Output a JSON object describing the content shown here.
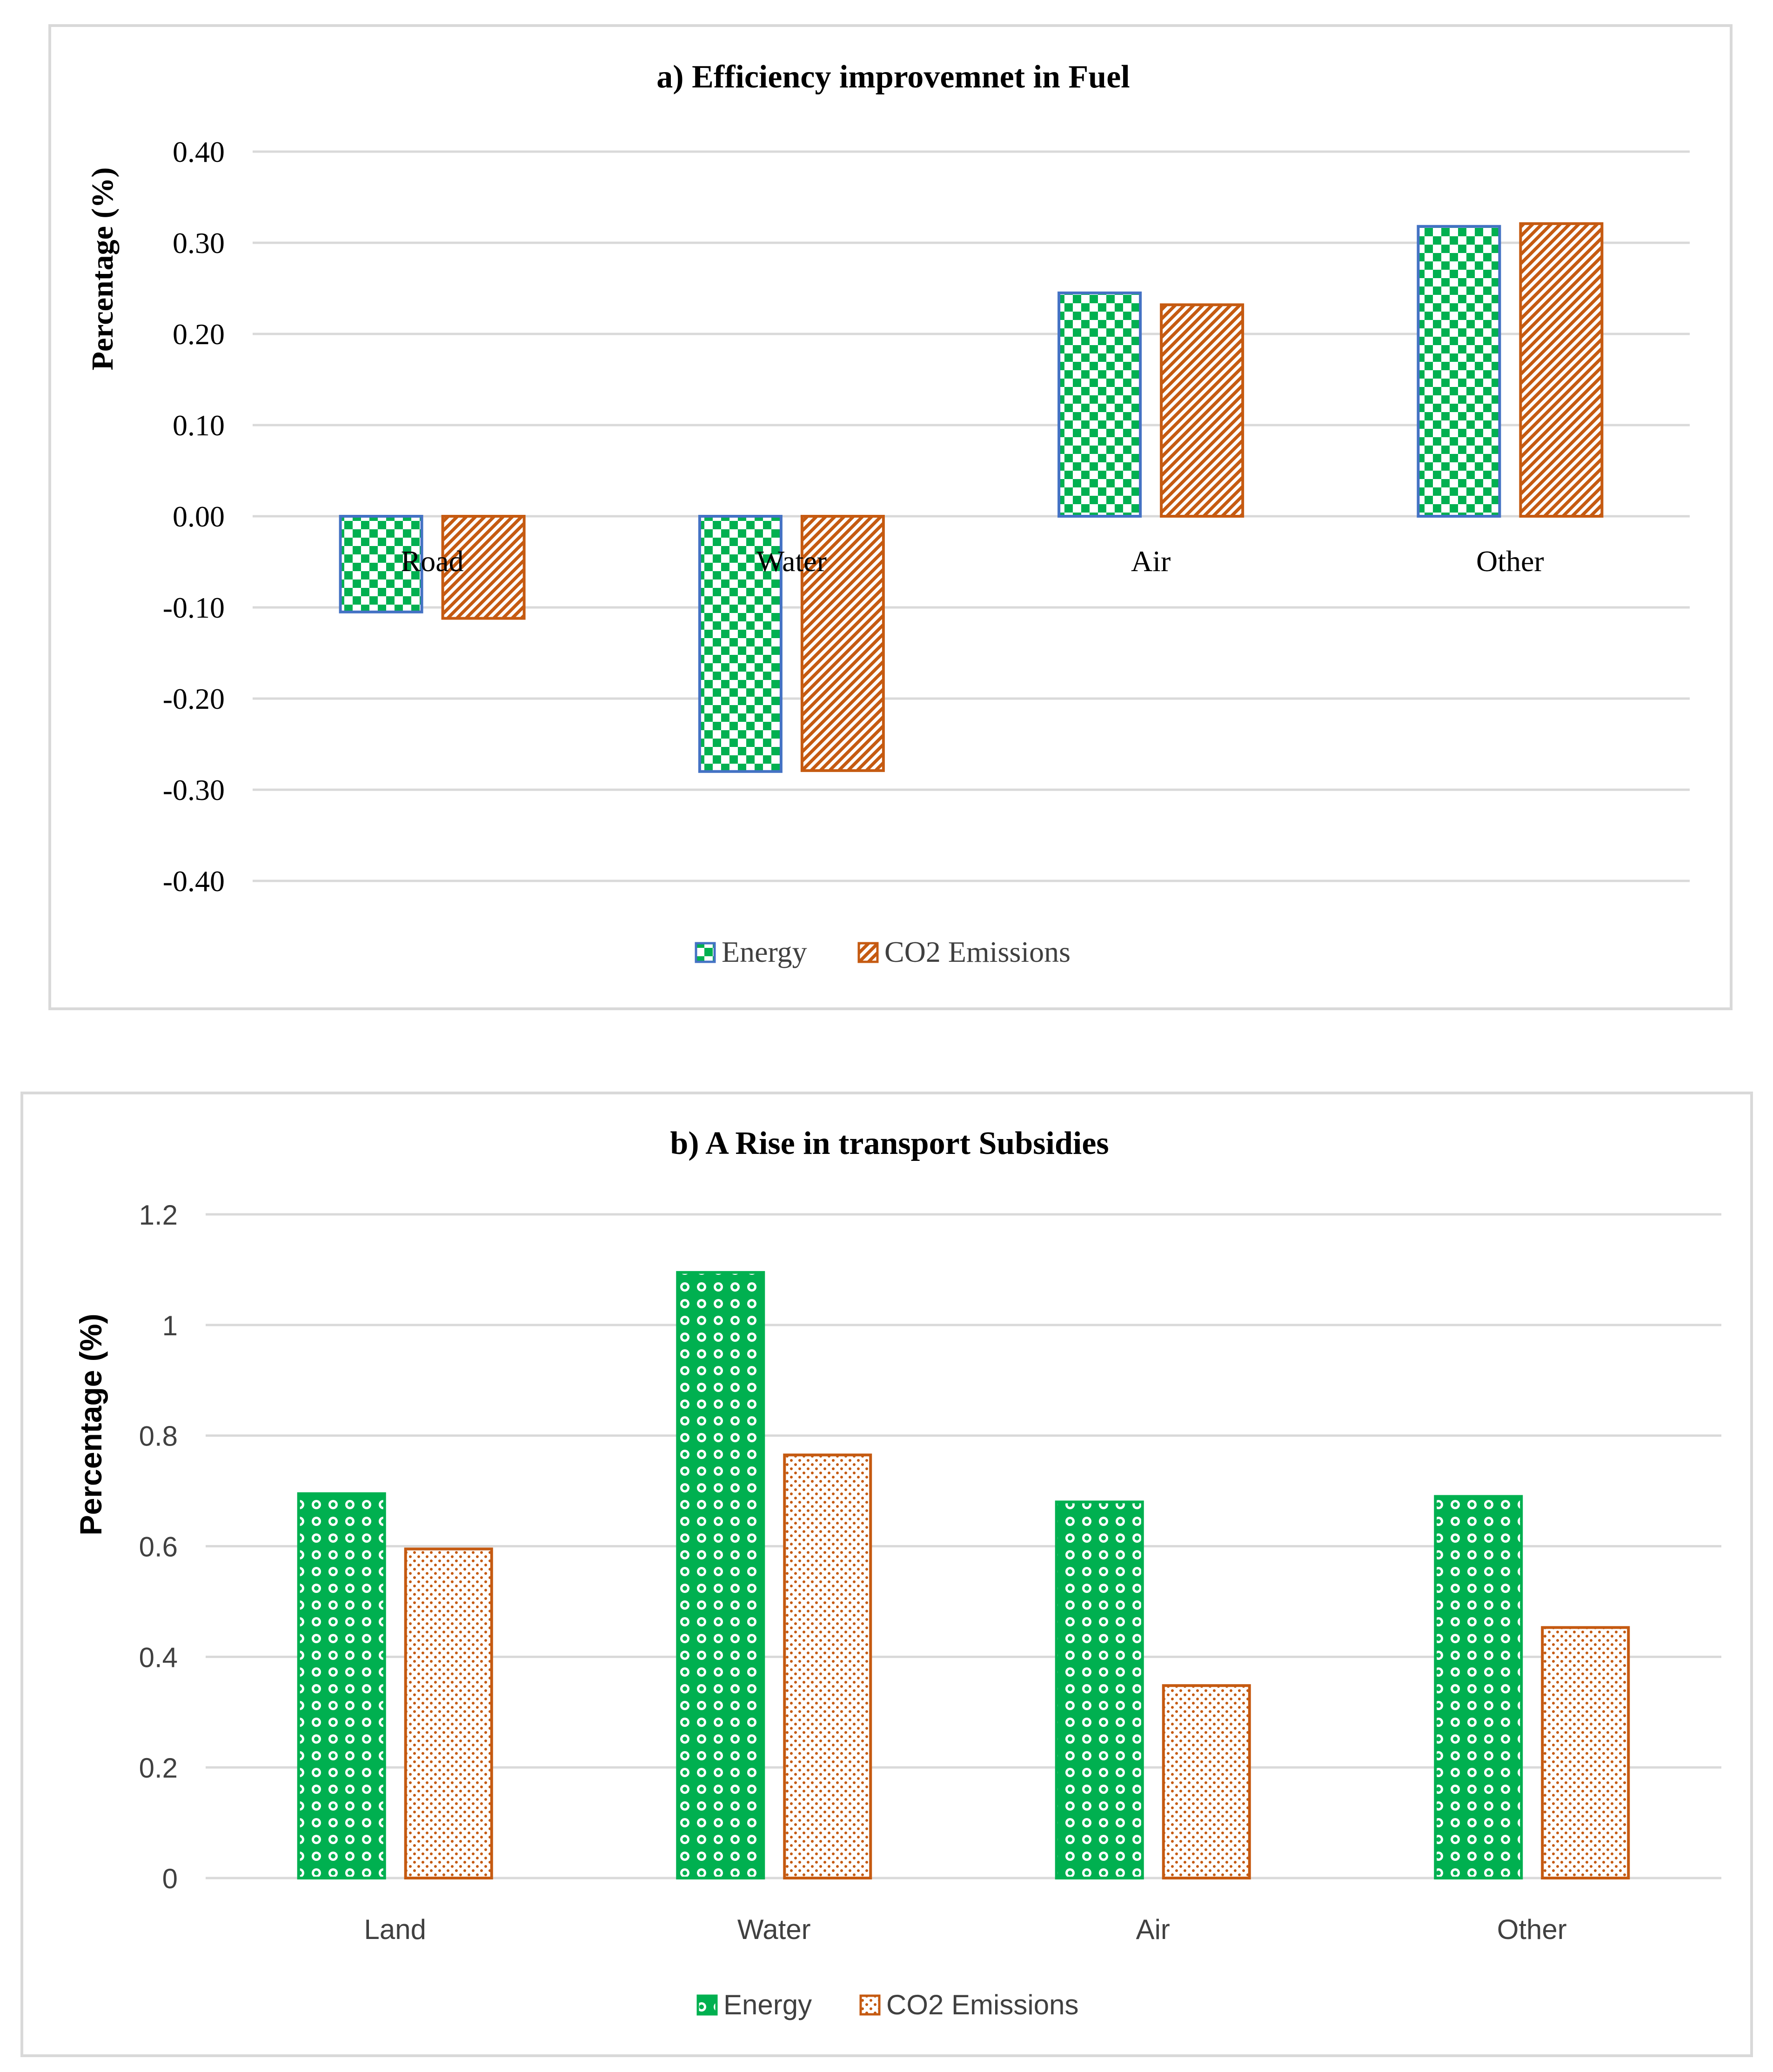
{
  "chart_data": [
    {
      "type": "bar",
      "title": "a) Efficiency improvemnet in Fuel",
      "ylabel": "Percentage (%)",
      "xlabel": "",
      "categories": [
        "Road",
        "Water",
        "Air",
        "Other"
      ],
      "ylim": [
        -0.4,
        0.4
      ],
      "yticks": [
        "0.40",
        "0.30",
        "0.20",
        "0.10",
        "0.00",
        "-0.10",
        "-0.20",
        "-0.30",
        "-0.40"
      ],
      "ytick_values": [
        0.4,
        0.3,
        0.2,
        0.1,
        0.0,
        -0.1,
        -0.2,
        -0.3,
        -0.4
      ],
      "grid": true,
      "legend_position": "bottom",
      "series": [
        {
          "name": "Energy",
          "values": [
            -0.105,
            -0.28,
            0.245,
            0.318
          ],
          "color": "#00B050",
          "border": "#4472C4",
          "pattern": "checkerboard"
        },
        {
          "name": "CO2 Emissions",
          "values": [
            -0.112,
            -0.279,
            0.232,
            0.321
          ],
          "color": "#C55A11",
          "border": "#C55A11",
          "pattern": "diagonal-hatch"
        }
      ]
    },
    {
      "type": "bar",
      "title": "b) A Rise in transport Subsidies",
      "ylabel": "Percentage (%)",
      "xlabel": "",
      "categories": [
        "Land",
        "Water",
        "Air",
        "Other"
      ],
      "ylim": [
        0,
        1.2
      ],
      "yticks": [
        "1.2",
        "1",
        "0.8",
        "0.6",
        "0.4",
        "0.2",
        "0"
      ],
      "ytick_values": [
        1.2,
        1.0,
        0.8,
        0.6,
        0.4,
        0.2,
        0.0
      ],
      "grid": true,
      "legend_position": "bottom",
      "series": [
        {
          "name": "Energy",
          "values": [
            0.695,
            1.095,
            0.68,
            0.69
          ],
          "color": "#00B050",
          "border": "#00B050",
          "pattern": "circles"
        },
        {
          "name": "CO2 Emissions",
          "values": [
            0.595,
            0.765,
            0.348,
            0.453
          ],
          "color": "#C55A11",
          "border": "#C55A11",
          "pattern": "dots"
        }
      ]
    }
  ]
}
